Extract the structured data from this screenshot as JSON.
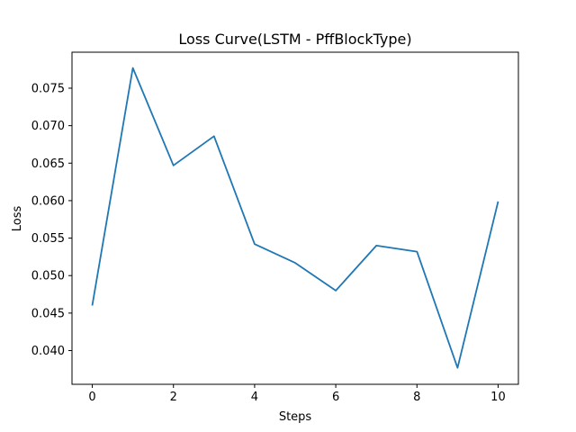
{
  "chart_data": {
    "type": "line",
    "title": "Loss Curve(LSTM - PffBlockType)",
    "xlabel": "Steps",
    "ylabel": "Loss",
    "xlim": [
      -0.5,
      10.5
    ],
    "ylim": [
      0.0355,
      0.0798
    ],
    "xticks": [
      0,
      2,
      4,
      6,
      8,
      10
    ],
    "yticks": [
      0.04,
      0.045,
      0.05,
      0.055,
      0.06,
      0.065,
      0.07,
      0.075
    ],
    "ytick_labels": [
      "0.040",
      "0.045",
      "0.050",
      "0.055",
      "0.060",
      "0.065",
      "0.070",
      "0.075"
    ],
    "grid": false,
    "series": [
      {
        "color": "#1f77b4",
        "x": [
          0,
          1,
          2,
          3,
          4,
          5,
          6,
          7,
          8,
          9,
          10
        ],
        "y": [
          0.046,
          0.0777,
          0.0647,
          0.0686,
          0.0542,
          0.0517,
          0.048,
          0.054,
          0.0532,
          0.0377,
          0.0599
        ]
      }
    ]
  }
}
